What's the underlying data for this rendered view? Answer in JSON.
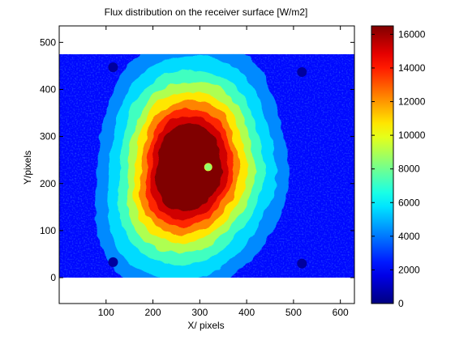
{
  "chart_data": {
    "type": "heatmap",
    "title": "Flux distribution on the receiver surface [W/m2]",
    "xlabel": "X/ pixels",
    "ylabel": "Y/pixels",
    "xlim": [
      0,
      630
    ],
    "ylim": [
      -55,
      535
    ],
    "xticks": [
      "100",
      "200",
      "300",
      "400",
      "500",
      "600"
    ],
    "yticks": [
      "0",
      "100",
      "200",
      "300",
      "400",
      "500"
    ],
    "colorbar": {
      "colormap": "jet",
      "range": [
        0,
        16500
      ],
      "ticks": [
        "0",
        "2000",
        "4000",
        "6000",
        "8000",
        "10000",
        "12000",
        "14000",
        "16000"
      ]
    },
    "image_extent": {
      "x": [
        0,
        630
      ],
      "y": [
        0,
        475
      ]
    },
    "background_flux": 2200,
    "hotspot": {
      "center": [
        275,
        235
      ],
      "peak_flux": 16500,
      "shape": "irregular blob, elongated upward-right"
    },
    "markers": [
      {
        "name": "calibration-spot-top-left",
        "x": 115,
        "y": 447,
        "flux": 500
      },
      {
        "name": "calibration-spot-top-right",
        "x": 518,
        "y": 437,
        "flux": 500
      },
      {
        "name": "calibration-spot-bottom-left",
        "x": 115,
        "y": 33,
        "flux": 500
      },
      {
        "name": "calibration-spot-bottom-right",
        "x": 518,
        "y": 30,
        "flux": 500
      },
      {
        "name": "center-target",
        "x": 318,
        "y": 235,
        "flux": 8500
      }
    ]
  }
}
